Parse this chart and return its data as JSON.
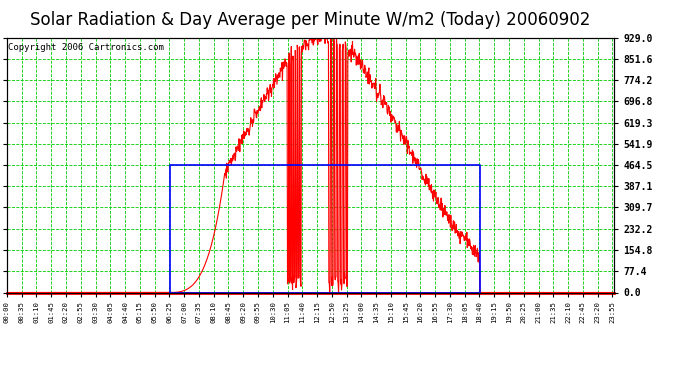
{
  "title": "Solar Radiation & Day Average per Minute W/m2 (Today) 20060902",
  "copyright": "Copyright 2006 Cartronics.com",
  "bg_color": "#ffffff",
  "plot_bg_color": "#ffffff",
  "grid_color": "#00cc00",
  "line_color": "#ff0000",
  "blue_box_color": "#0000ff",
  "yticks": [
    0.0,
    77.4,
    154.8,
    232.2,
    309.7,
    387.1,
    464.5,
    541.9,
    619.3,
    696.8,
    774.2,
    851.6,
    929.0
  ],
  "ymax": 929.0,
  "ymin": 0.0,
  "total_minutes": 1440,
  "sunrise_minute": 386,
  "sunset_minute": 1121,
  "day_avg": 464.5,
  "title_fontsize": 12,
  "copyright_fontsize": 6.5,
  "tick_step": 35
}
